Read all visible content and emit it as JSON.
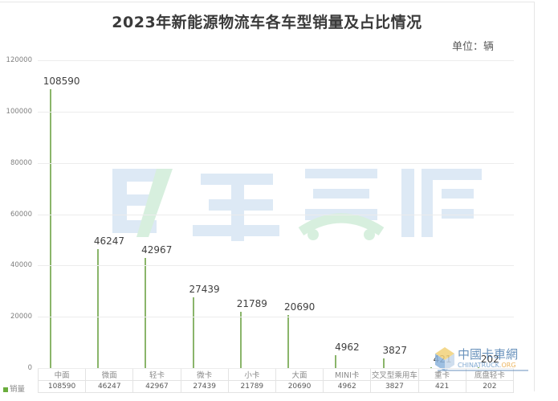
{
  "chart_data": {
    "type": "bar",
    "title": "2023年新能源物流车各车型销量及占比情况",
    "unit": "单位：辆",
    "xlabel": "",
    "ylabel": "",
    "ylim": [
      0,
      120000
    ],
    "yticks": [
      0,
      20000,
      40000,
      60000,
      80000,
      100000,
      120000
    ],
    "grid": true,
    "legend_position": "bottom-left (data table)",
    "categories": [
      "中面",
      "微面",
      "轻卡",
      "微卡",
      "小卡",
      "大面",
      "MINI卡",
      "交叉型乘用车",
      "重卡",
      "底盘轻卡"
    ],
    "series": [
      {
        "name": "销量",
        "values": [
          108590,
          46247,
          42967,
          27439,
          21789,
          20690,
          4962,
          3827,
          421,
          202
        ]
      }
    ],
    "color": "#6aad3c"
  },
  "header": {
    "title": "2023年新能源物流车各车型销量及占比情况",
    "unit": "单位：辆"
  },
  "table": {
    "legend_label": "销量",
    "categories": [
      "中面",
      "微面",
      "轻卡",
      "微卡",
      "小卡",
      "大面",
      "MINI卡",
      "交叉型乘用车",
      "重卡",
      "底盘轻卡"
    ],
    "values": [
      "108590",
      "46247",
      "42967",
      "27439",
      "21789",
      "20690",
      "4962",
      "3827",
      "421",
      "202"
    ]
  },
  "watermarks": {
    "center": "电车资源",
    "corner_cn": "中国卡车网",
    "corner_en": "CHINATRUCK.ORG"
  }
}
